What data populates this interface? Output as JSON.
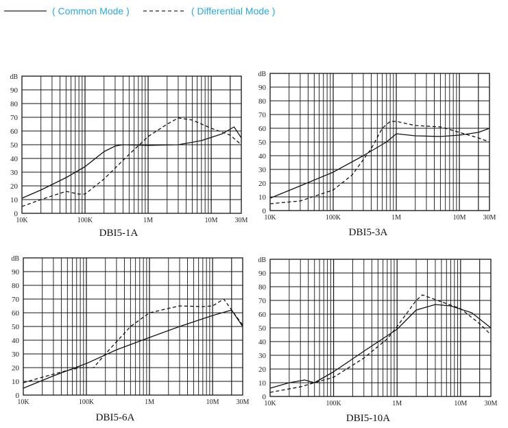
{
  "legend": {
    "common_label": "( Common Mode )",
    "differential_label": "( Differential Mode )"
  },
  "chart_data": [
    {
      "type": "line",
      "title": "DBI5-1A",
      "ylabel": "dB",
      "ylim": [
        0,
        100
      ],
      "xlim": [
        10000,
        30000000
      ],
      "xscale": "log",
      "yticks": [
        "0",
        "10",
        "20",
        "30",
        "40",
        "50",
        "60",
        "70",
        "80",
        "90"
      ],
      "xticks": [
        "10K",
        "100K",
        "1M",
        "10M",
        "30M"
      ],
      "grid": true,
      "series": [
        {
          "name": "Common Mode",
          "style": "solid",
          "x": [
            10000,
            20000,
            50000,
            100000,
            200000,
            300000,
            400000,
            1000000,
            3000000,
            7000000,
            15000000,
            23000000,
            30000000
          ],
          "y": [
            11,
            17,
            26,
            34,
            45,
            49,
            50,
            49.5,
            50,
            53,
            58,
            63,
            55
          ]
        },
        {
          "name": "Differential Mode",
          "style": "dashed",
          "x": [
            10000,
            20000,
            50000,
            80000,
            100000,
            200000,
            500000,
            1000000,
            2000000,
            3000000,
            5000000,
            10000000,
            20000000,
            30000000
          ],
          "y": [
            5,
            10,
            16,
            14,
            14,
            25,
            43,
            56,
            65,
            69.5,
            68,
            62,
            57,
            50
          ]
        }
      ]
    },
    {
      "type": "line",
      "title": "DBI5-3A",
      "ylabel": "dB",
      "ylim": [
        0,
        100
      ],
      "xlim": [
        10000,
        30000000
      ],
      "xscale": "log",
      "yticks": [
        "0",
        "10",
        "20",
        "30",
        "40",
        "50",
        "60",
        "70",
        "80",
        "90"
      ],
      "xticks": [
        "10K",
        "100K",
        "1M",
        "10M",
        "30M"
      ],
      "grid": true,
      "series": [
        {
          "name": "Common Mode",
          "style": "solid",
          "x": [
            10000,
            30000,
            100000,
            300000,
            700000,
            1000000,
            2000000,
            5000000,
            10000000,
            20000000,
            30000000
          ],
          "y": [
            9,
            18,
            28,
            40,
            50,
            56,
            54.5,
            54,
            55,
            57,
            60
          ]
        },
        {
          "name": "Differential Mode",
          "style": "dashed",
          "x": [
            10000,
            30000,
            100000,
            200000,
            400000,
            600000,
            800000,
            1000000,
            2000000,
            5000000,
            10000000,
            20000000,
            30000000
          ],
          "y": [
            5,
            7,
            15,
            26,
            45,
            60,
            65,
            65,
            62,
            61,
            57,
            53,
            50
          ]
        }
      ]
    },
    {
      "type": "line",
      "title": "DBI5-6A",
      "ylabel": "dB",
      "ylim": [
        0,
        100
      ],
      "xlim": [
        10000,
        30000000
      ],
      "xscale": "log",
      "yticks": [
        "0",
        "10",
        "20",
        "30",
        "40",
        "50",
        "60",
        "70",
        "80",
        "90"
      ],
      "xticks": [
        "10K",
        "100K",
        "1M",
        "10M",
        "30M"
      ],
      "grid": true,
      "series": [
        {
          "name": "Common Mode",
          "style": "solid",
          "x": [
            10000,
            30000,
            100000,
            300000,
            1000000,
            3000000,
            10000000,
            20000000,
            30000000
          ],
          "y": [
            5,
            14,
            23,
            33,
            42,
            50,
            58,
            62,
            50
          ]
        },
        {
          "name": "Differential Mode",
          "style": "dashed",
          "x": [
            10000,
            20000,
            50000,
            80000,
            100000,
            130000,
            200000,
            500000,
            1000000,
            3000000,
            7000000,
            10000000,
            15000000,
            30000000
          ],
          "y": [
            9,
            13,
            18,
            20,
            20,
            20,
            30,
            50,
            60,
            65,
            64.5,
            65,
            70,
            51
          ]
        }
      ]
    },
    {
      "type": "line",
      "title": "DBI5-10A",
      "ylabel": "dB",
      "ylim": [
        0,
        100
      ],
      "xlim": [
        10000,
        30000000
      ],
      "xscale": "log",
      "yticks": [
        "0",
        "10",
        "20",
        "30",
        "40",
        "50",
        "60",
        "70",
        "80",
        "90"
      ],
      "xticks": [
        "10K",
        "100K",
        "1M",
        "10M",
        "30M"
      ],
      "grid": true,
      "series": [
        {
          "name": "Common Mode",
          "style": "solid",
          "x": [
            10000,
            20000,
            35000,
            50000,
            100000,
            300000,
            1000000,
            2000000,
            4000000,
            7000000,
            15000000,
            30000000
          ],
          "y": [
            6,
            10,
            12,
            10,
            18,
            33,
            49,
            63,
            67,
            66,
            61,
            50
          ]
        },
        {
          "name": "Differential Mode",
          "style": "dashed",
          "x": [
            10000,
            30000,
            50000,
            100000,
            300000,
            700000,
            1000000,
            2000000,
            2500000,
            5000000,
            10000000,
            20000000,
            30000000
          ],
          "y": [
            3,
            7,
            10,
            14,
            28,
            42,
            51,
            70,
            74,
            69,
            64,
            53,
            45
          ]
        }
      ]
    }
  ]
}
